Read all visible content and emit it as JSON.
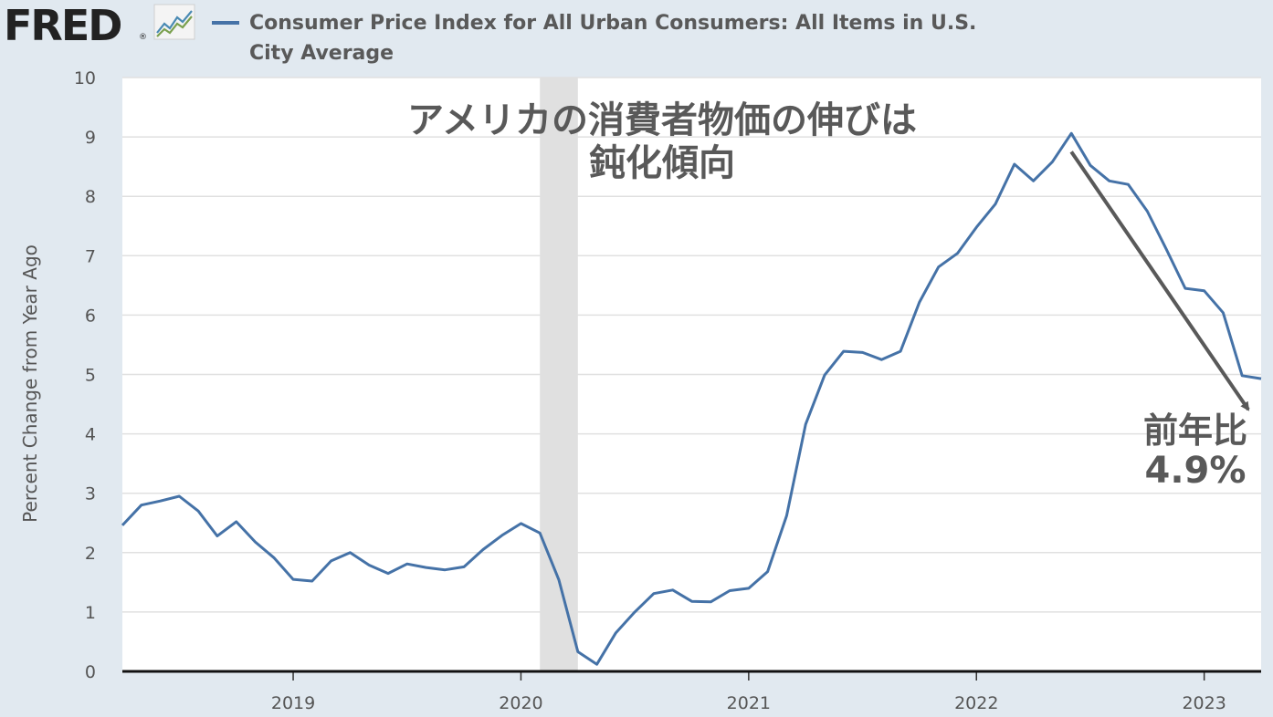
{
  "header": {
    "logo_text": "FRED",
    "logo_registered": "®",
    "logo_icon": "line-graph-icon",
    "legend_label": "Consumer Price Index for All Urban Consumers: All Items in U.S. City Average"
  },
  "colors": {
    "series": "#4572a7",
    "recession": "#e0e0e0",
    "grid": "#e0e0e0",
    "background": "#e1e9f0",
    "plot_background": "#ffffff",
    "annotation": "#595959"
  },
  "chart_data": {
    "type": "line",
    "title": "",
    "xlabel": "",
    "ylabel": "Percent Change from Year Ago",
    "ylim": [
      0,
      10
    ],
    "y_ticks": [
      "0",
      "1",
      "2",
      "3",
      "4",
      "5",
      "6",
      "7",
      "8",
      "9",
      "10"
    ],
    "x_ticks": [
      "2019",
      "2020",
      "2021",
      "2022",
      "2023"
    ],
    "x_range": [
      "2018-04",
      "2023-04"
    ],
    "grid": "horizontal",
    "recession_shading": {
      "start": "2020-02",
      "end": "2020-04"
    },
    "series": [
      {
        "name": "Consumer Price Index for All Urban Consumers: All Items in U.S. City Average",
        "x": [
          "2018-04",
          "2018-05",
          "2018-06",
          "2018-07",
          "2018-08",
          "2018-09",
          "2018-10",
          "2018-11",
          "2018-12",
          "2019-01",
          "2019-02",
          "2019-03",
          "2019-04",
          "2019-05",
          "2019-06",
          "2019-07",
          "2019-08",
          "2019-09",
          "2019-10",
          "2019-11",
          "2019-12",
          "2020-01",
          "2020-02",
          "2020-03",
          "2020-04",
          "2020-05",
          "2020-06",
          "2020-07",
          "2020-08",
          "2020-09",
          "2020-10",
          "2020-11",
          "2020-12",
          "2021-01",
          "2021-02",
          "2021-03",
          "2021-04",
          "2021-05",
          "2021-06",
          "2021-07",
          "2021-08",
          "2021-09",
          "2021-10",
          "2021-11",
          "2021-12",
          "2022-01",
          "2022-02",
          "2022-03",
          "2022-04",
          "2022-05",
          "2022-06",
          "2022-07",
          "2022-08",
          "2022-09",
          "2022-10",
          "2022-11",
          "2022-12",
          "2023-01",
          "2023-02",
          "2023-03",
          "2023-04"
        ],
        "values": [
          2.46,
          2.8,
          2.87,
          2.95,
          2.7,
          2.28,
          2.52,
          2.18,
          1.91,
          1.55,
          1.52,
          1.86,
          2.0,
          1.79,
          1.65,
          1.81,
          1.75,
          1.71,
          1.76,
          2.05,
          2.29,
          2.49,
          2.33,
          1.54,
          0.33,
          0.12,
          0.65,
          1.0,
          1.31,
          1.37,
          1.18,
          1.17,
          1.36,
          1.4,
          1.68,
          2.62,
          4.16,
          4.99,
          5.39,
          5.37,
          5.25,
          5.39,
          6.22,
          6.81,
          7.04,
          7.48,
          7.87,
          8.54,
          8.26,
          8.58,
          9.06,
          8.52,
          8.26,
          8.2,
          7.75,
          7.11,
          6.45,
          6.41,
          6.04,
          4.98,
          4.93
        ]
      }
    ],
    "annotations": {
      "title_line1": "アメリカの消費者物価の伸びは",
      "title_line2": "鈍化傾向",
      "callout_line1": "前年比",
      "callout_line2": "4.9%",
      "arrow_from": {
        "x": "2022-06",
        "y": 8.75
      },
      "arrow_to": {
        "x": "2023-04",
        "y": 4.5
      }
    }
  }
}
